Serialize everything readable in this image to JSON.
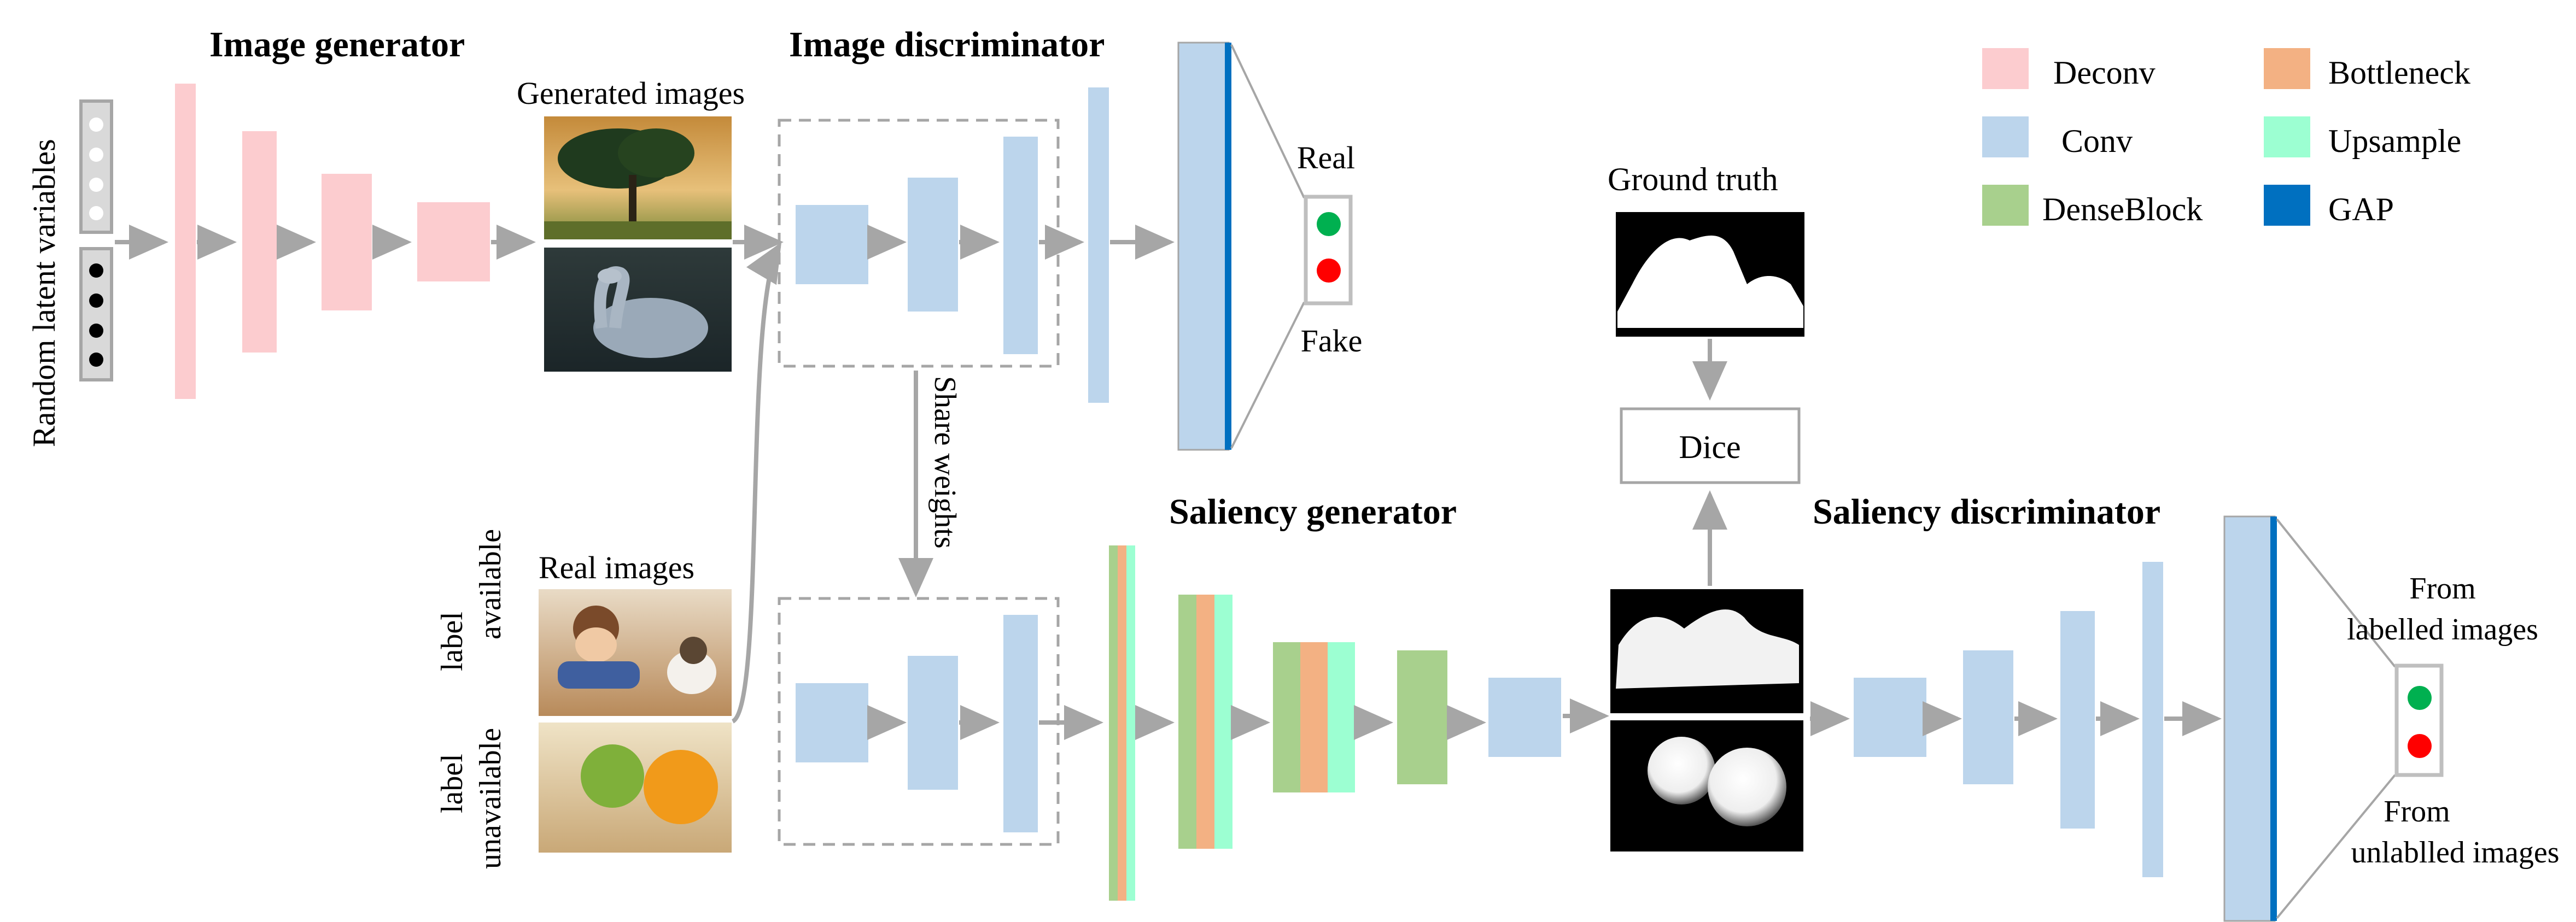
{
  "colors": {
    "deconv": "#fccccf",
    "conv": "#bcd5ec",
    "denseblock": "#a8d08d",
    "bottleneck": "#f3b183",
    "upsample": "#9cffd2",
    "gap": "#0070c0",
    "arrow": "#a6a6a6",
    "real_text": "#00b050",
    "fake_text": "#ff0000",
    "real_dot": "#00b050",
    "fake_dot": "#ff0000"
  },
  "titles": {
    "image_generator": "Image generator",
    "image_discriminator": "Image discriminator",
    "saliency_generator": "Saliency generator",
    "saliency_discriminator": "Saliency discriminator"
  },
  "labels": {
    "random_latent": "Random latent  variables",
    "generated_images": "Generated images",
    "real_images": "Real  images",
    "label_available_1": "label",
    "label_available_2": "available",
    "label_unavailable_1": "label",
    "label_unavailable_2": "unavailable",
    "share_weights": "Share weights",
    "ground_truth": "Ground truth",
    "dice": "Dice",
    "real": "Real",
    "fake": "Fake",
    "from_labelled_1": "From",
    "from_labelled_2": "labelled images",
    "from_unlabelled_1": "From",
    "from_unlabelled_2": "unlablled images"
  },
  "legend": {
    "deconv": "Deconv",
    "bottleneck": "Bottleneck",
    "conv": "Conv",
    "upsample": "Upsample",
    "denseblock": "DenseBlock",
    "gap": "GAP"
  }
}
